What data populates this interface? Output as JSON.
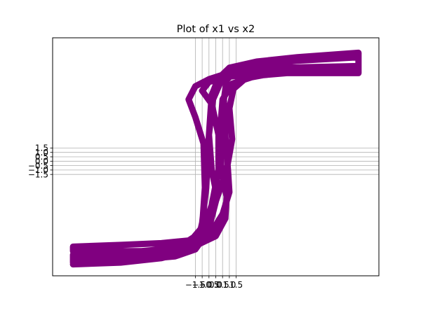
{
  "chart_data": {
    "type": "line",
    "title": "Plot of x1 vs x2",
    "xlabel": "",
    "ylabel": "",
    "xlim": [
      -12,
      12
    ],
    "ylim": [
      -13,
      14
    ],
    "x_ticks": [
      -1.5,
      -1.0,
      -0.5,
      0.0,
      0.5,
      1.0,
      1.5
    ],
    "x_tick_labels": [
      "−1.5",
      "−1.0",
      "−0.5",
      "0.0",
      "0.5",
      "1.0",
      "1.5"
    ],
    "y_ticks": [
      -1.5,
      -1.0,
      -0.5,
      0.0,
      0.5,
      1.0,
      1.5
    ],
    "y_tick_labels": [
      "−1.5",
      "−1.0",
      "−0.5",
      "0.0",
      "0.5",
      "1.0",
      "1.5"
    ],
    "grid": true,
    "line_color": "#800080",
    "series": [
      {
        "values": [
          [
            -10.5,
            -11.7
          ],
          [
            -7.0,
            -11.5
          ],
          [
            -4.0,
            -11.0
          ],
          [
            -2.0,
            -10.2
          ],
          [
            -1.3,
            -9.0
          ],
          [
            -1.0,
            -7.0
          ],
          [
            -0.7,
            -3.0
          ],
          [
            -0.5,
            3.0
          ],
          [
            -0.2,
            7.0
          ],
          [
            0.5,
            9.5
          ],
          [
            2.0,
            10.8
          ],
          [
            5.0,
            11.6
          ],
          [
            10.5,
            12.2
          ],
          [
            10.5,
            11.8
          ],
          [
            6.0,
            11.4
          ],
          [
            3.0,
            10.9
          ],
          [
            1.5,
            10.3
          ],
          [
            0.8,
            9.2
          ],
          [
            0.6,
            7.0
          ],
          [
            0.7,
            3.0
          ],
          [
            0.9,
            -1.0
          ],
          [
            1.0,
            -3.5
          ],
          [
            0.5,
            -6.0
          ],
          [
            -0.3,
            -8.0
          ],
          [
            -1.5,
            -9.5
          ],
          [
            -4.0,
            -10.5
          ],
          [
            -7.0,
            -11.0
          ],
          [
            -10.5,
            -11.2
          ],
          [
            -10.5,
            -10.6
          ],
          [
            -7.0,
            -10.4
          ],
          [
            -4.0,
            -10.0
          ],
          [
            -2.0,
            -9.3
          ],
          [
            -1.0,
            -7.5
          ],
          [
            -0.8,
            -3.0
          ],
          [
            -0.9,
            2.0
          ],
          [
            -1.5,
            5.0
          ],
          [
            -2.0,
            7.0
          ],
          [
            -1.5,
            8.5
          ],
          [
            -0.5,
            9.3
          ],
          [
            0.5,
            9.8
          ],
          [
            2.0,
            10.3
          ],
          [
            5.0,
            10.6
          ],
          [
            10.5,
            10.8
          ],
          [
            10.5,
            10.3
          ],
          [
            6.0,
            10.1
          ],
          [
            3.0,
            9.7
          ],
          [
            1.2,
            8.8
          ],
          [
            0.5,
            7.0
          ],
          [
            0.3,
            3.0
          ],
          [
            0.4,
            -1.0
          ],
          [
            0.8,
            -4.0
          ],
          [
            0.7,
            -6.5
          ],
          [
            0.0,
            -8.5
          ],
          [
            -1.5,
            -9.6
          ],
          [
            -4.0,
            -10.2
          ],
          [
            -10.5,
            -10.2
          ],
          [
            -10.5,
            -9.7
          ],
          [
            -7.0,
            -9.5
          ],
          [
            -4.0,
            -9.3
          ],
          [
            -2.0,
            -9.0
          ],
          [
            -1.0,
            -8.0
          ],
          [
            -0.3,
            -5.0
          ],
          [
            0.2,
            -1.0
          ],
          [
            0.2,
            3.0
          ],
          [
            -0.3,
            6.5
          ],
          [
            -1.0,
            8.0
          ],
          [
            -0.5,
            9.0
          ],
          [
            1.0,
            9.6
          ],
          [
            4.0,
            10.0
          ],
          [
            10.5,
            10.0
          ],
          [
            10.5,
            12.3
          ],
          [
            6.0,
            11.8
          ],
          [
            3.0,
            11.3
          ],
          [
            1.0,
            10.6
          ],
          [
            0.2,
            9.4
          ],
          [
            -0.3,
            7.5
          ],
          [
            -0.5,
            3.0
          ],
          [
            -0.3,
            -1.0
          ],
          [
            0.1,
            -4.0
          ],
          [
            -0.4,
            -7.0
          ],
          [
            -1.2,
            -9.0
          ],
          [
            -3.0,
            -10.0
          ],
          [
            -6.0,
            -10.6
          ],
          [
            -10.5,
            -10.9
          ],
          [
            -10.5,
            -11.5
          ],
          [
            -6.0,
            -11.2
          ],
          [
            -3.0,
            -10.8
          ],
          [
            -1.5,
            -10.0
          ],
          [
            -0.8,
            -8.5
          ],
          [
            -0.1,
            -5.0
          ],
          [
            0.8,
            -1.0
          ],
          [
            1.2,
            2.5
          ],
          [
            1.0,
            6.0
          ],
          [
            1.3,
            8.2
          ],
          [
            2.2,
            9.4
          ],
          [
            5.0,
            10.2
          ],
          [
            10.5,
            10.5
          ]
        ]
      }
    ]
  }
}
